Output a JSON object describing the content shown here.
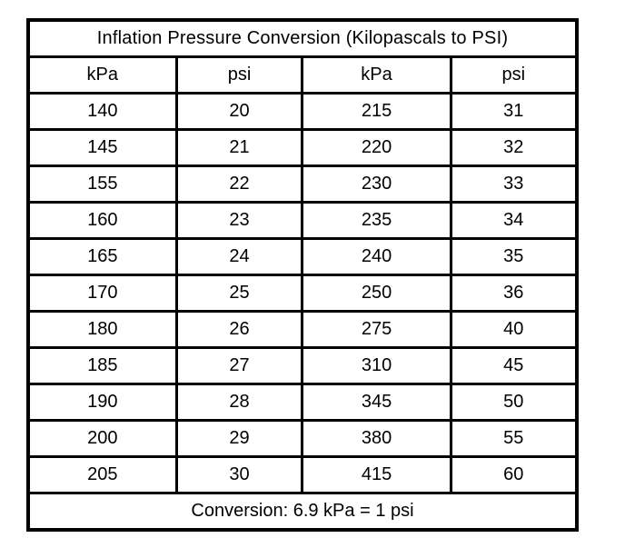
{
  "table": {
    "title": "Inflation Pressure Conversion (Kilopascals to PSI)",
    "headers": [
      "kPa",
      "psi",
      "kPa",
      "psi"
    ],
    "rows": [
      [
        "140",
        "20",
        "215",
        "31"
      ],
      [
        "145",
        "21",
        "220",
        "32"
      ],
      [
        "155",
        "22",
        "230",
        "33"
      ],
      [
        "160",
        "23",
        "235",
        "34"
      ],
      [
        "165",
        "24",
        "240",
        "35"
      ],
      [
        "170",
        "25",
        "250",
        "36"
      ],
      [
        "180",
        "26",
        "275",
        "40"
      ],
      [
        "185",
        "27",
        "310",
        "45"
      ],
      [
        "190",
        "28",
        "345",
        "50"
      ],
      [
        "200",
        "29",
        "380",
        "55"
      ],
      [
        "205",
        "30",
        "415",
        "60"
      ]
    ],
    "footer": "Conversion: 6.9 kPa = 1 psi"
  },
  "colors": {
    "border": "#000000",
    "background": "#ffffff",
    "text": "#000000"
  }
}
